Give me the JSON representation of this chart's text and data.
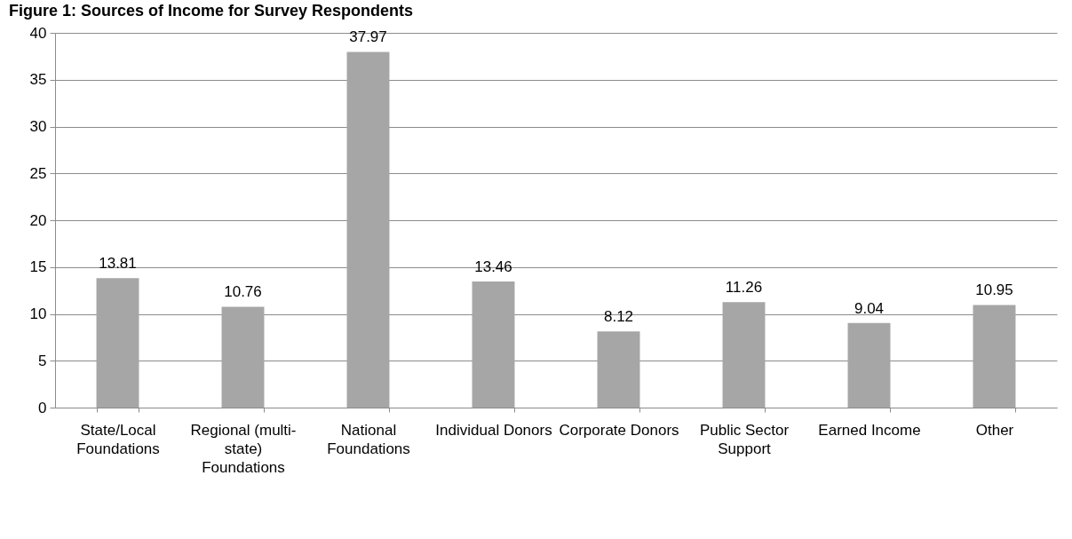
{
  "chart_data": {
    "type": "bar",
    "title": "Figure 1: Sources of Income for Survey Respondents",
    "categories": [
      "State/Local Foundations",
      "Regional (multi-state) Foundations",
      "National Foundations",
      "Individual Donors",
      "Corporate Donors",
      "Public Sector Support",
      "Earned Income",
      "Other"
    ],
    "values": [
      13.81,
      10.76,
      37.97,
      13.46,
      8.12,
      11.26,
      9.04,
      10.95
    ],
    "color": "#a6a6a6",
    "ylim": [
      0,
      40
    ],
    "yticks": [
      0,
      5,
      10,
      15,
      20,
      25,
      30,
      35,
      40
    ],
    "grid": "y",
    "data_labels": true
  }
}
